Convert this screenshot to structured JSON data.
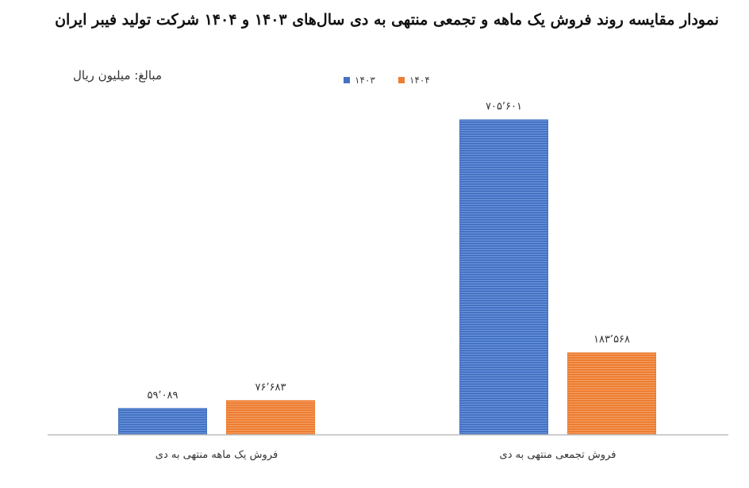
{
  "chart_data": {
    "type": "bar",
    "title": "نمودار مقایسه روند فروش یک ماهه و تجمعی منتهی به دی سال‌های ۱۴۰۳ و ۱۴۰۴ شرکت تولید فیبر ایران",
    "unit_label": "مبالغ: میلیون ریال",
    "categories": [
      "فروش یک ماهه منتهی به دی",
      "فروش تجمعی منتهی به دی"
    ],
    "series": [
      {
        "name": "۱۴۰۳",
        "color": "#4472c4",
        "values": [
          59089,
          705601
        ],
        "labels": [
          "۵۹٬۰۸۹",
          "۷۰۵٬۶۰۱"
        ]
      },
      {
        "name": "۱۴۰۴",
        "color": "#ed7d31",
        "values": [
          76683,
          183568
        ],
        "labels": [
          "۷۶٬۶۸۳",
          "۱۸۳٬۵۶۸"
        ]
      }
    ],
    "ylim": [
      0,
      705601
    ],
    "grid": false,
    "legend": "top-center"
  }
}
